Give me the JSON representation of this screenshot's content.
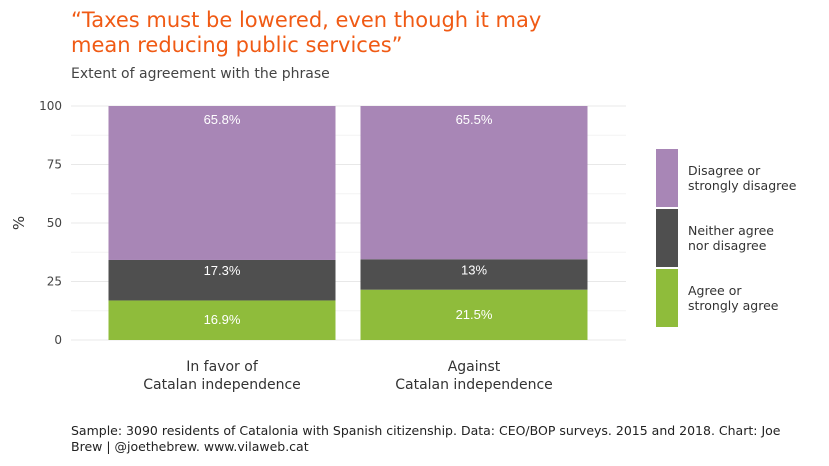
{
  "chart_data": {
    "type": "bar",
    "stacked": true,
    "title_lines": [
      "“Taxes must be lowered, even though it may",
      "mean reducing public services”"
    ],
    "subtitle": "Extent of agreement with the phrase",
    "ylabel": "%",
    "xlabel": "",
    "ylim": [
      0,
      100
    ],
    "yticks": [
      0,
      25,
      50,
      75,
      100
    ],
    "grid": true,
    "legend_position": "right",
    "categories": [
      [
        "In favor of",
        "Catalan independence"
      ],
      [
        "Against",
        "Catalan independence"
      ]
    ],
    "series": [
      {
        "name_lines": [
          "Agree or",
          "strongly agree"
        ],
        "color": "#8fbc3b",
        "values": [
          16.9,
          21.5
        ],
        "labels": [
          "16.9%",
          "21.5%"
        ]
      },
      {
        "name_lines": [
          "Neither agree",
          "nor disagree"
        ],
        "color": "#4f4f4f",
        "values": [
          17.3,
          13
        ],
        "labels": [
          "17.3%",
          "13%"
        ]
      },
      {
        "name_lines": [
          "Disagree or",
          "strongly disagree"
        ],
        "color": "#a886b6",
        "values": [
          65.8,
          65.5
        ],
        "labels": [
          "65.8%",
          "65.5%"
        ]
      }
    ]
  },
  "caption": "Sample: 3090 residents of Catalonia with Spanish citizenship. Data: CEO/BOP surveys. 2015 and 2018. Chart: Joe Brew | @joethebrew. www.vilaweb.cat"
}
